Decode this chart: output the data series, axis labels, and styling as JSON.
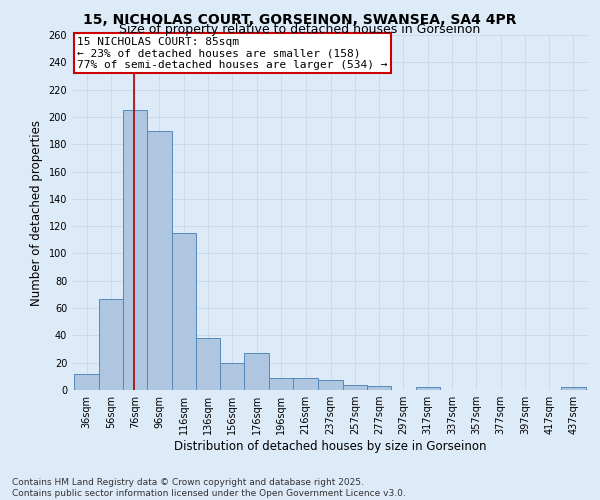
{
  "title_line1": "15, NICHOLAS COURT, GORSEINON, SWANSEA, SA4 4PR",
  "title_line2": "Size of property relative to detached houses in Gorseinon",
  "xlabel": "Distribution of detached houses by size in Gorseinon",
  "ylabel": "Number of detached properties",
  "bar_left_edges": [
    36,
    56,
    76,
    96,
    116,
    136,
    156,
    176,
    196,
    216,
    237,
    257,
    277,
    297,
    317,
    337,
    357,
    377,
    397,
    417,
    437
  ],
  "bar_heights": [
    12,
    67,
    205,
    190,
    115,
    38,
    20,
    27,
    9,
    9,
    7,
    4,
    3,
    0,
    2,
    0,
    0,
    0,
    0,
    0,
    2
  ],
  "bar_color": "#aec6e0",
  "bar_edgecolor": "#5588bb",
  "grid_color": "#c8d8ec",
  "background_color": "#ddeaf8",
  "property_line_x": 85,
  "property_line_color": "#aa0000",
  "annotation_title": "15 NICHOLAS COURT: 85sqm",
  "annotation_line1": "← 23% of detached houses are smaller (158)",
  "annotation_line2": "77% of semi-detached houses are larger (534) →",
  "annotation_box_color": "#cc0000",
  "annotation_bg": "#ffffff",
  "ylim": [
    0,
    260
  ],
  "yticks": [
    0,
    20,
    40,
    60,
    80,
    100,
    120,
    140,
    160,
    180,
    200,
    220,
    240,
    260
  ],
  "tick_labels": [
    "36sqm",
    "56sqm",
    "76sqm",
    "96sqm",
    "116sqm",
    "136sqm",
    "156sqm",
    "176sqm",
    "196sqm",
    "216sqm",
    "237sqm",
    "257sqm",
    "277sqm",
    "297sqm",
    "317sqm",
    "337sqm",
    "357sqm",
    "377sqm",
    "397sqm",
    "417sqm",
    "437sqm"
  ],
  "footer_line1": "Contains HM Land Registry data © Crown copyright and database right 2025.",
  "footer_line2": "Contains public sector information licensed under the Open Government Licence v3.0.",
  "title_fontsize": 10,
  "subtitle_fontsize": 9,
  "axis_label_fontsize": 8.5,
  "tick_fontsize": 7,
  "annotation_fontsize": 8,
  "footer_fontsize": 6.5
}
